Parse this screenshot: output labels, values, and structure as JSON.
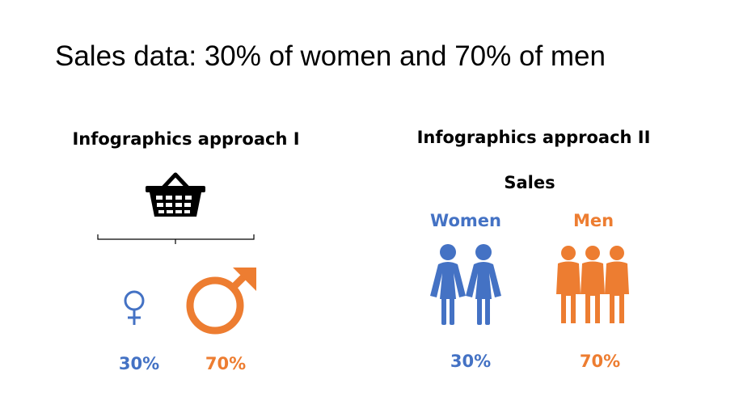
{
  "title": "Sales data: 30% of women and 70% of men",
  "colors": {
    "women": "#4472C4",
    "men": "#ED7D31",
    "text": "#000000"
  },
  "approach1": {
    "heading": "Infographics approach I",
    "icons": [
      "basket-icon",
      "female-symbol-icon",
      "male-symbol-icon"
    ]
  },
  "approach2": {
    "heading": "Infographics approach II",
    "subheading": "Sales",
    "icons": [
      "women-figures-icon",
      "men-figures-icon"
    ]
  },
  "chart_data": {
    "type": "infographic",
    "title": "Sales data: 30% of women and 70% of men",
    "categories": [
      "Women",
      "Men"
    ],
    "values": [
      30,
      70
    ],
    "value_labels": [
      "30%",
      "70%"
    ],
    "unit": "%"
  }
}
